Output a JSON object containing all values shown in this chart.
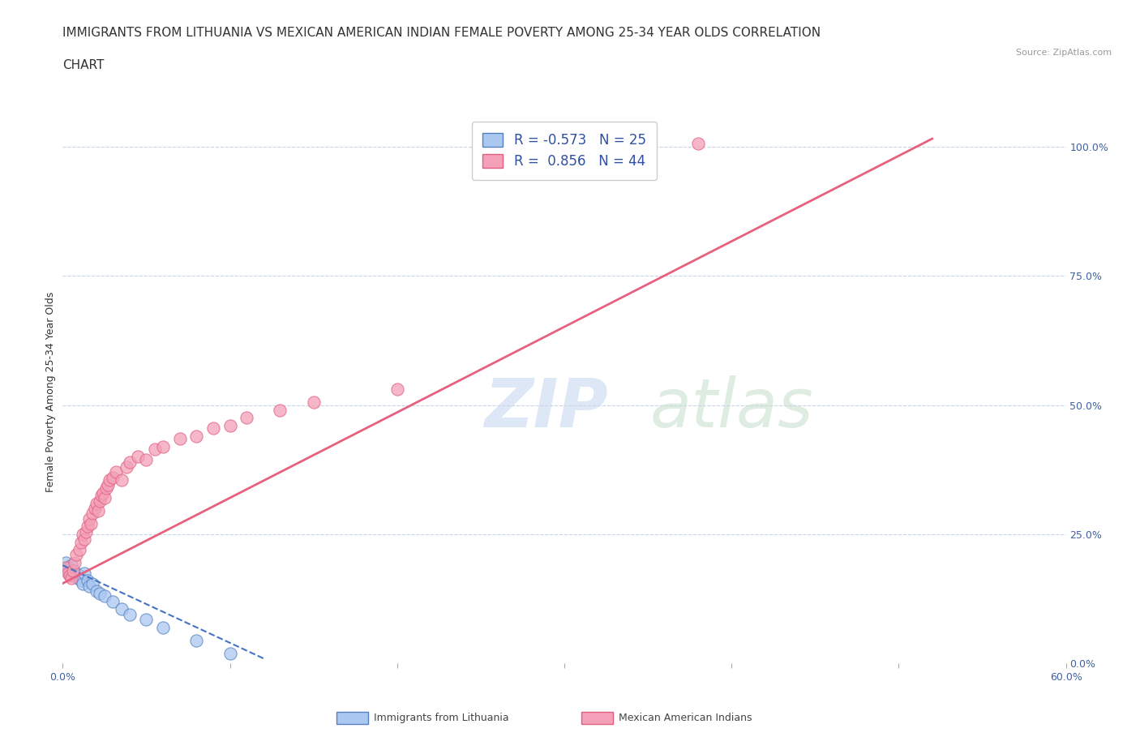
{
  "title_line1": "IMMIGRANTS FROM LITHUANIA VS MEXICAN AMERICAN INDIAN FEMALE POVERTY AMONG 25-34 YEAR OLDS CORRELATION",
  "title_line2": "CHART",
  "source": "Source: ZipAtlas.com",
  "ylabel": "Female Poverty Among 25-34 Year Olds",
  "xlim": [
    0.0,
    0.6
  ],
  "ylim": [
    0.0,
    1.05
  ],
  "xticks": [
    0.0,
    0.1,
    0.2,
    0.3,
    0.4,
    0.5,
    0.6
  ],
  "ytick_right_labels": [
    "0.0%",
    "25.0%",
    "50.0%",
    "75.0%",
    "100.0%"
  ],
  "ytick_right_values": [
    0.0,
    0.25,
    0.5,
    0.75,
    1.0
  ],
  "blue_color": "#aac8f0",
  "pink_color": "#f4a0b8",
  "blue_edge_color": "#5580c0",
  "pink_edge_color": "#e06080",
  "blue_line_color": "#4472c4",
  "pink_line_color": "#e86080",
  "blue_scatter": [
    [
      0.002,
      0.195
    ],
    [
      0.003,
      0.185
    ],
    [
      0.004,
      0.175
    ],
    [
      0.005,
      0.19
    ],
    [
      0.006,
      0.18
    ],
    [
      0.007,
      0.17
    ],
    [
      0.008,
      0.175
    ],
    [
      0.009,
      0.165
    ],
    [
      0.01,
      0.17
    ],
    [
      0.011,
      0.16
    ],
    [
      0.012,
      0.155
    ],
    [
      0.013,
      0.175
    ],
    [
      0.015,
      0.16
    ],
    [
      0.016,
      0.15
    ],
    [
      0.018,
      0.155
    ],
    [
      0.02,
      0.14
    ],
    [
      0.022,
      0.135
    ],
    [
      0.025,
      0.13
    ],
    [
      0.03,
      0.12
    ],
    [
      0.035,
      0.105
    ],
    [
      0.04,
      0.095
    ],
    [
      0.05,
      0.085
    ],
    [
      0.06,
      0.07
    ],
    [
      0.08,
      0.045
    ],
    [
      0.1,
      0.02
    ]
  ],
  "pink_scatter": [
    [
      0.002,
      0.185
    ],
    [
      0.003,
      0.175
    ],
    [
      0.004,
      0.17
    ],
    [
      0.005,
      0.165
    ],
    [
      0.006,
      0.18
    ],
    [
      0.007,
      0.195
    ],
    [
      0.008,
      0.21
    ],
    [
      0.01,
      0.22
    ],
    [
      0.011,
      0.235
    ],
    [
      0.012,
      0.25
    ],
    [
      0.013,
      0.24
    ],
    [
      0.014,
      0.255
    ],
    [
      0.015,
      0.265
    ],
    [
      0.016,
      0.28
    ],
    [
      0.017,
      0.27
    ],
    [
      0.018,
      0.29
    ],
    [
      0.019,
      0.3
    ],
    [
      0.02,
      0.31
    ],
    [
      0.021,
      0.295
    ],
    [
      0.022,
      0.315
    ],
    [
      0.023,
      0.325
    ],
    [
      0.024,
      0.33
    ],
    [
      0.025,
      0.32
    ],
    [
      0.026,
      0.34
    ],
    [
      0.027,
      0.345
    ],
    [
      0.028,
      0.355
    ],
    [
      0.03,
      0.36
    ],
    [
      0.032,
      0.37
    ],
    [
      0.035,
      0.355
    ],
    [
      0.038,
      0.38
    ],
    [
      0.04,
      0.39
    ],
    [
      0.045,
      0.4
    ],
    [
      0.05,
      0.395
    ],
    [
      0.055,
      0.415
    ],
    [
      0.06,
      0.42
    ],
    [
      0.07,
      0.435
    ],
    [
      0.08,
      0.44
    ],
    [
      0.09,
      0.455
    ],
    [
      0.1,
      0.46
    ],
    [
      0.11,
      0.475
    ],
    [
      0.13,
      0.49
    ],
    [
      0.15,
      0.505
    ],
    [
      0.2,
      0.53
    ],
    [
      0.38,
      1.005
    ]
  ],
  "blue_trend_x": [
    0.0,
    0.12
  ],
  "blue_trend_y": [
    0.19,
    0.01
  ],
  "pink_trend_x": [
    0.0,
    0.52
  ],
  "pink_trend_y": [
    0.155,
    1.015
  ],
  "background_color": "#ffffff",
  "grid_color": "#c8d4e8",
  "title_fontsize": 11,
  "axis_label_fontsize": 9,
  "tick_fontsize": 9,
  "legend_fontsize": 12
}
